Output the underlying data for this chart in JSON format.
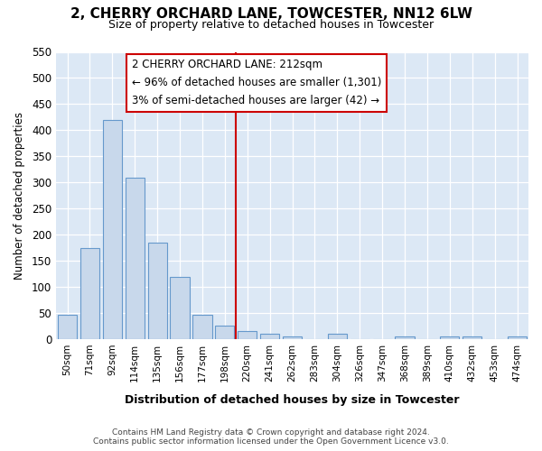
{
  "title": "2, CHERRY ORCHARD LANE, TOWCESTER, NN12 6LW",
  "subtitle": "Size of property relative to detached houses in Towcester",
  "xlabel": "Distribution of detached houses by size in Towcester",
  "ylabel": "Number of detached properties",
  "categories": [
    "50sqm",
    "71sqm",
    "92sqm",
    "114sqm",
    "135sqm",
    "156sqm",
    "177sqm",
    "198sqm",
    "220sqm",
    "241sqm",
    "262sqm",
    "283sqm",
    "304sqm",
    "326sqm",
    "347sqm",
    "368sqm",
    "389sqm",
    "410sqm",
    "432sqm",
    "453sqm",
    "474sqm"
  ],
  "values": [
    47,
    175,
    420,
    309,
    185,
    120,
    46,
    26,
    15,
    10,
    6,
    0,
    10,
    0,
    0,
    5,
    0,
    5,
    5,
    0,
    5
  ],
  "bar_color": "#c8d8eb",
  "bar_edge_color": "#6699cc",
  "vline_index": 8.0,
  "vline_color": "#cc0000",
  "annotation_line1": "2 CHERRY ORCHARD LANE: 212sqm",
  "annotation_line2": "← 96% of detached houses are smaller (1,301)",
  "annotation_line3": "3% of semi-detached houses are larger (42) →",
  "ylim_max": 550,
  "yticks": [
    0,
    50,
    100,
    150,
    200,
    250,
    300,
    350,
    400,
    450,
    500,
    550
  ],
  "axes_bg_color": "#dce8f5",
  "fig_bg_color": "#ffffff",
  "grid_color": "#ffffff",
  "tick_label_font_size": 7.5,
  "footer_line1": "Contains HM Land Registry data © Crown copyright and database right 2024.",
  "footer_line2": "Contains public sector information licensed under the Open Government Licence v3.0."
}
